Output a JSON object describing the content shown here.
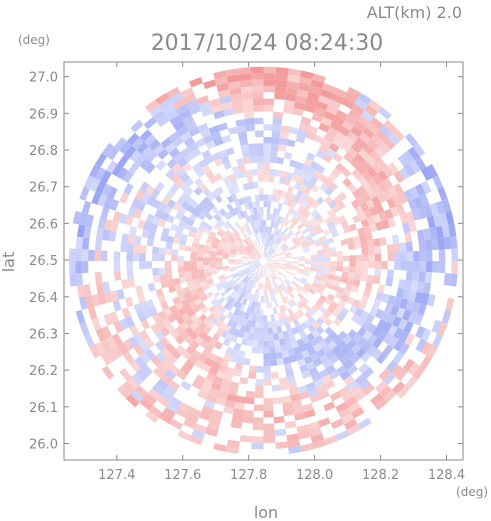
{
  "chart_data": {
    "type": "heatmap",
    "title": "2017/10/24 08:24:30",
    "subtitle": "ALT(km) 2.0",
    "xlabel": "lon",
    "ylabel": "lat",
    "xunit": "(deg)",
    "yunit": "(deg)",
    "xlim": [
      127.24,
      128.45
    ],
    "ylim": [
      25.955,
      27.04
    ],
    "xticks": [
      "127.4",
      "127.6",
      "127.8",
      "128.0",
      "128.2",
      "128.4"
    ],
    "yticks": [
      "26.0",
      "26.1",
      "26.2",
      "26.3",
      "26.4",
      "26.5",
      "26.6",
      "26.7",
      "26.8",
      "26.9",
      "27.0"
    ],
    "grid": false,
    "domain": {
      "shape": "circle",
      "center_lon": 127.845,
      "center_lat": 26.497,
      "radius_lon": 0.59,
      "radius_lat": 0.555
    },
    "colors": {
      "positive": "#f28f8f",
      "negative": "#8f9cf2",
      "neutral": "#ffffff",
      "axis": "#8a8a8a"
    }
  }
}
